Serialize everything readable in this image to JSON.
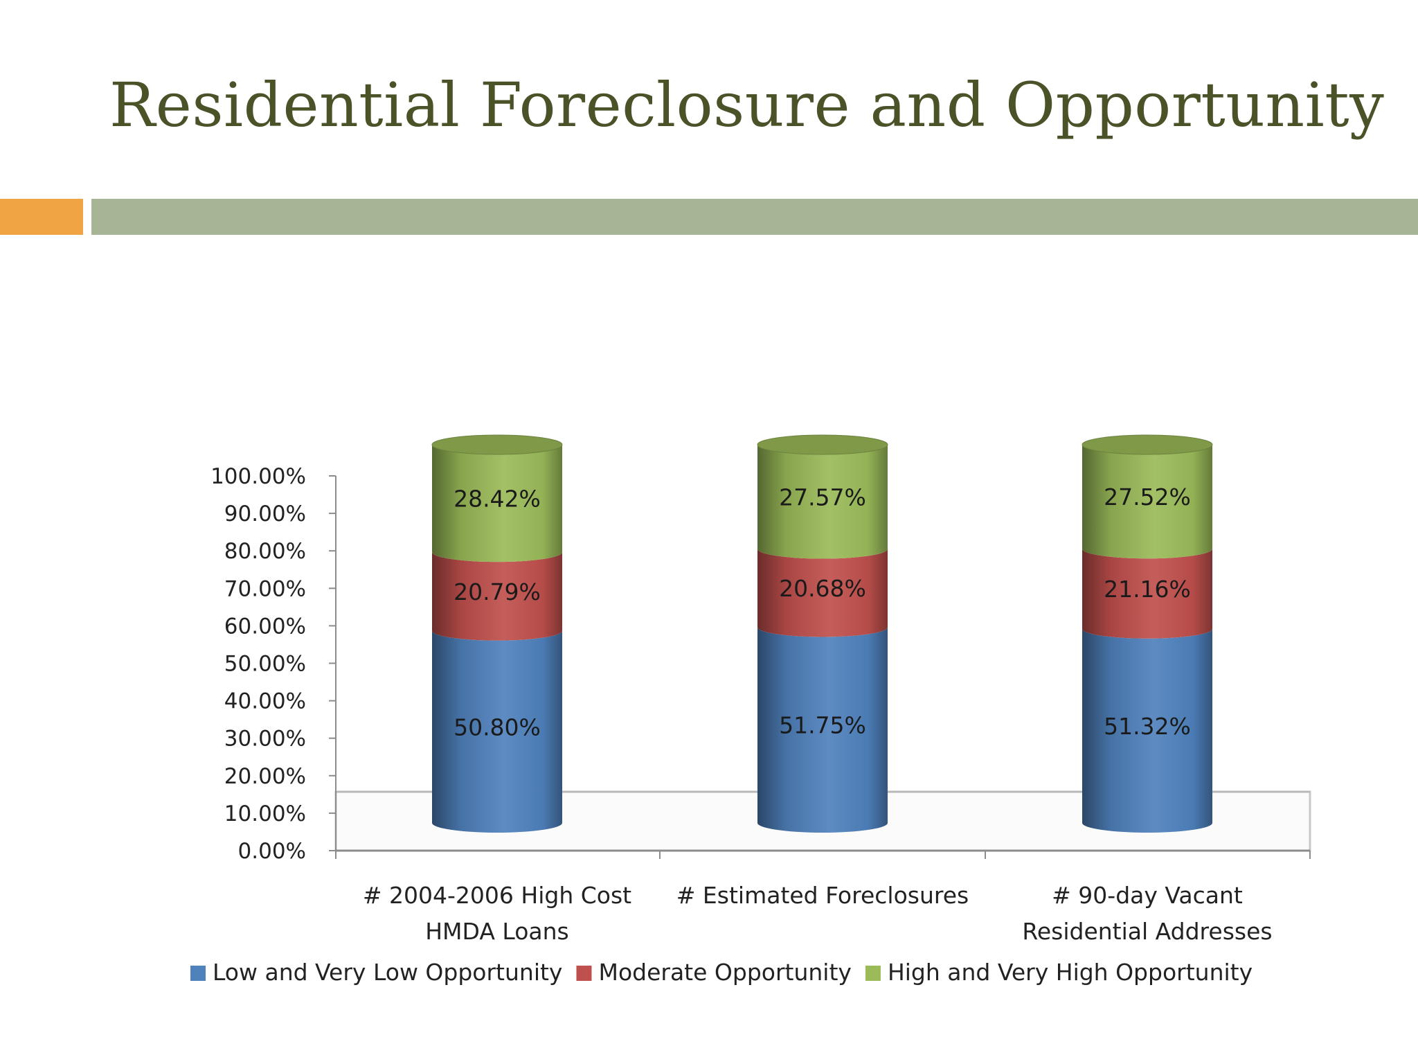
{
  "slide": {
    "title": "Residential Foreclosure and Opportunity",
    "accent_colors": {
      "orange": "#f0a444",
      "green": "#a6b595"
    }
  },
  "chart_data": {
    "type": "bar",
    "stacked": true,
    "style": "3d-cylinder",
    "categories": [
      [
        "# 2004-2006 High Cost",
        "HMDA Loans"
      ],
      [
        "# Estimated  Foreclosures"
      ],
      [
        "# 90-day Vacant",
        "Residential Addresses"
      ]
    ],
    "series": [
      {
        "name": "Low and Very Low Opportunity",
        "color": "#4f81bd",
        "values": [
          50.8,
          51.75,
          51.32
        ],
        "labels": [
          "50.80%",
          "51.75%",
          "51.32%"
        ]
      },
      {
        "name": "Moderate Opportunity",
        "color": "#c0504d",
        "values": [
          20.79,
          20.68,
          21.16
        ],
        "labels": [
          "20.79%",
          "20.68%",
          "21.16%"
        ]
      },
      {
        "name": "High and Very High Opportunity",
        "color": "#9bbb59",
        "values": [
          28.42,
          27.57,
          27.52
        ],
        "labels": [
          "28.42%",
          "27.57%",
          "27.52%"
        ]
      }
    ],
    "y_ticks": [
      "0.00%",
      "10.00%",
      "20.00%",
      "30.00%",
      "40.00%",
      "50.00%",
      "60.00%",
      "70.00%",
      "80.00%",
      "90.00%",
      "100.00%"
    ],
    "ylim": [
      0,
      100
    ],
    "legend_position": "bottom",
    "grid": false
  }
}
